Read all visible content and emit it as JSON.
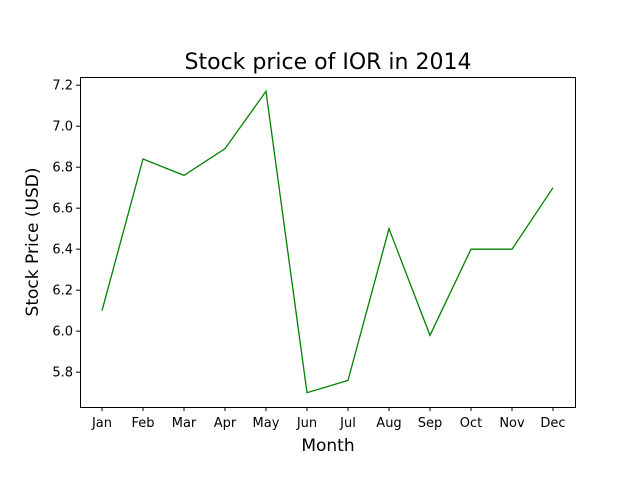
{
  "chart_data": {
    "type": "line",
    "title": "Stock price of IOR in 2014",
    "xlabel": "Month",
    "ylabel": "Stock Price (USD)",
    "categories": [
      "Jan",
      "Feb",
      "Mar",
      "Apr",
      "May",
      "Jun",
      "Jul",
      "Aug",
      "Sep",
      "Oct",
      "Nov",
      "Dec"
    ],
    "series": [
      {
        "values": [
          6.1,
          6.84,
          6.76,
          6.89,
          7.17,
          5.7,
          5.76,
          6.5,
          5.98,
          6.4,
          6.4,
          6.7
        ],
        "color": "#008000"
      }
    ],
    "yticks": [
      "5.8",
      "6.0",
      "6.2",
      "6.4",
      "6.6",
      "6.8",
      "7.0",
      "7.2"
    ],
    "ylim": [
      5.63,
      7.24
    ],
    "grid": false,
    "legend": "none"
  }
}
